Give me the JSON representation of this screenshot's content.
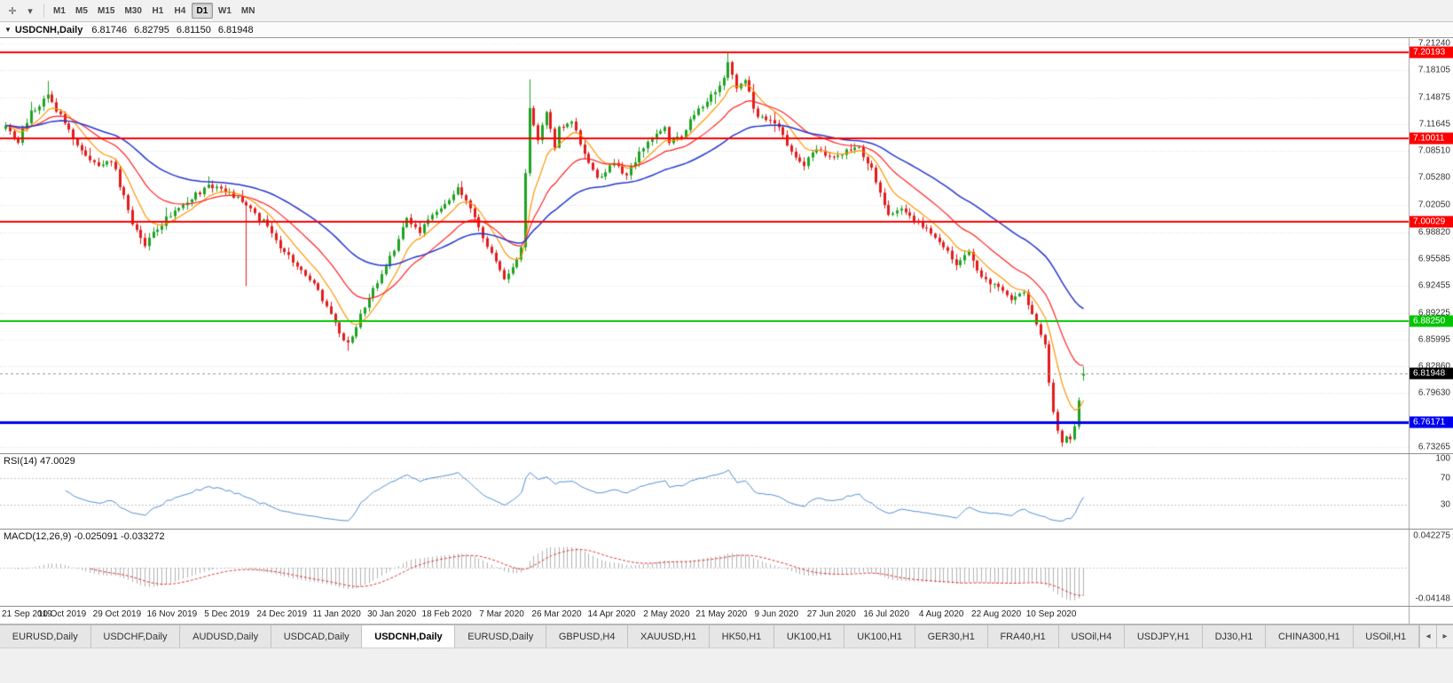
{
  "toolbar": {
    "icons": [
      {
        "name": "crosshair-icon",
        "glyph": "✛"
      },
      {
        "name": "caret-down-icon",
        "glyph": "▾"
      }
    ],
    "timeframes": [
      "M1",
      "M5",
      "M15",
      "M30",
      "H1",
      "H4",
      "D1",
      "W1",
      "MN"
    ],
    "selected": "D1"
  },
  "chart": {
    "header": {
      "collapse_glyph": "▼",
      "symbol": "USDCNH,Daily",
      "open": "6.81746",
      "high": "6.82795",
      "low": "6.81150",
      "close": "6.81948"
    },
    "price_axis": {
      "ticks": [
        "7.21240",
        "7.18105",
        "7.14875",
        "7.11645",
        "7.08510",
        "7.05280",
        "7.02050",
        "6.98820",
        "6.95585",
        "6.92455",
        "6.89225",
        "6.85995",
        "6.82860",
        "6.79630",
        "6.76400",
        "6.73265"
      ],
      "scale_max": 7.219,
      "scale_min": 6.725
    },
    "hlines": [
      {
        "price": 7.20193,
        "label": "7.20193",
        "color": "#fe0000",
        "width": 2
      },
      {
        "price": 7.10011,
        "label": "7.10011",
        "color": "#fe0000",
        "width": 2
      },
      {
        "price": 7.00029,
        "label": "7.00029",
        "color": "#fe0000",
        "width": 2
      },
      {
        "price": 6.8825,
        "label": "6.88250",
        "color": "#00c400",
        "width": 2
      },
      {
        "price": 6.76171,
        "label": "6.76171",
        "color": "#0000f0",
        "width": 3
      }
    ],
    "current_price": {
      "value": 6.81948,
      "label": "6.81948",
      "badge_bg": "#000000"
    }
  },
  "rsi": {
    "label": "RSI(14) 47.0029",
    "value": 47.0029,
    "levels": [
      70,
      30
    ],
    "axis_labels": [
      "100",
      "70",
      "30"
    ],
    "axis_values": [
      100,
      70,
      30
    ],
    "line_color": "#4f8fce"
  },
  "macd": {
    "label": "MACD(12,26,9) -0.025091 -0.033272",
    "macd_value": -0.025091,
    "signal_value": -0.033272,
    "axis_labels": [
      "0.042275",
      "-0.04148"
    ]
  },
  "date_axis": {
    "labels": [
      "21 Sep 2019",
      "10 Oct 2019",
      "29 Oct 2019",
      "16 Nov 2019",
      "5 Dec 2019",
      "24 Dec 2019",
      "11 Jan 2020",
      "30 Jan 2020",
      "18 Feb 2020",
      "7 Mar 2020",
      "26 Mar 2020",
      "14 Apr 2020",
      "2 May 2020",
      "21 May 2020",
      "9 Jun 2020",
      "27 Jun 2020",
      "16 Jul 2020",
      "4 Aug 2020",
      "22 Aug 2020",
      "10 Sep 2020"
    ]
  },
  "tabs": {
    "items": [
      "EURUSD,Daily",
      "USDCHF,Daily",
      "AUDUSD,Daily",
      "USDCAD,Daily",
      "USDCNH,Daily",
      "EURUSD,Daily",
      "GBPUSD,H4",
      "XAUUSD,H1",
      "HK50,H1",
      "UK100,H1",
      "UK100,H1",
      "GER30,H1",
      "FRA40,H1",
      "USOil,H4",
      "USDJPY,H1",
      "DJ30,H1",
      "CHINA300,H1",
      "USOil,H1"
    ],
    "active_index": 4,
    "scroll_left_glyph": "◂",
    "scroll_right_glyph": "▸"
  },
  "colors": {
    "background": "#ffffff",
    "grid": "#dcdcdc",
    "candle_up": "#1da322",
    "candle_down": "#e31b1b",
    "macd_hist": "#b0b0b0",
    "macd_signal": "#e03030",
    "axis_text": "#333333"
  },
  "chart_data": {
    "type": "candlestick",
    "symbol": "USDCNH",
    "timeframe": "Daily",
    "bars": 256,
    "last_bar_ohlc": [
      6.81746,
      6.82795,
      6.8115,
      6.81948
    ],
    "extremes": {
      "high": 7.2019,
      "low": 6.7327
    },
    "price_path_anchors": [
      [
        0,
        7.115
      ],
      [
        3,
        7.098
      ],
      [
        6,
        7.13
      ],
      [
        10,
        7.152
      ],
      [
        14,
        7.118
      ],
      [
        18,
        7.085
      ],
      [
        22,
        7.068
      ],
      [
        25,
        7.075
      ],
      [
        27,
        7.045
      ],
      [
        30,
        7.0
      ],
      [
        33,
        6.972
      ],
      [
        36,
        6.992
      ],
      [
        40,
        7.015
      ],
      [
        44,
        7.03
      ],
      [
        48,
        7.042
      ],
      [
        53,
        7.035
      ],
      [
        57,
        7.018
      ],
      [
        61,
        7.0
      ],
      [
        66,
        6.965
      ],
      [
        70,
        6.945
      ],
      [
        74,
        6.918
      ],
      [
        77,
        6.888
      ],
      [
        79,
        6.868
      ],
      [
        81,
        6.855
      ],
      [
        84,
        6.888
      ],
      [
        88,
        6.928
      ],
      [
        92,
        6.968
      ],
      [
        95,
        7.002
      ],
      [
        98,
        6.988
      ],
      [
        101,
        7.012
      ],
      [
        104,
        7.022
      ],
      [
        107,
        7.038
      ],
      [
        110,
        7.018
      ],
      [
        113,
        6.982
      ],
      [
        116,
        6.952
      ],
      [
        118,
        6.935
      ],
      [
        120,
        6.945
      ],
      [
        122,
        6.968
      ],
      [
        123,
        7.06
      ],
      [
        124,
        7.135
      ],
      [
        126,
        7.1
      ],
      [
        128,
        7.128
      ],
      [
        130,
        7.092
      ],
      [
        131,
        7.112
      ],
      [
        134,
        7.118
      ],
      [
        137,
        7.082
      ],
      [
        140,
        7.052
      ],
      [
        144,
        7.072
      ],
      [
        147,
        7.055
      ],
      [
        150,
        7.082
      ],
      [
        153,
        7.102
      ],
      [
        156,
        7.112
      ],
      [
        157,
        7.092
      ],
      [
        160,
        7.102
      ],
      [
        163,
        7.128
      ],
      [
        166,
        7.142
      ],
      [
        169,
        7.162
      ],
      [
        171,
        7.188
      ],
      [
        173,
        7.158
      ],
      [
        175,
        7.172
      ],
      [
        177,
        7.132
      ],
      [
        180,
        7.122
      ],
      [
        183,
        7.115
      ],
      [
        186,
        7.082
      ],
      [
        189,
        7.068
      ],
      [
        192,
        7.088
      ],
      [
        196,
        7.075
      ],
      [
        199,
        7.086
      ],
      [
        202,
        7.09
      ],
      [
        205,
        7.062
      ],
      [
        209,
        7.006
      ],
      [
        212,
        7.018
      ],
      [
        215,
        7.0
      ],
      [
        218,
        6.992
      ],
      [
        222,
        6.972
      ],
      [
        225,
        6.952
      ],
      [
        228,
        6.962
      ],
      [
        231,
        6.936
      ],
      [
        235,
        6.922
      ],
      [
        238,
        6.905
      ],
      [
        241,
        6.918
      ],
      [
        244,
        6.878
      ],
      [
        246,
        6.855
      ],
      [
        247,
        6.81
      ],
      [
        248,
        6.775
      ],
      [
        249,
        6.752
      ],
      [
        250,
        6.738
      ],
      [
        251,
        6.746
      ],
      [
        252,
        6.741
      ],
      [
        253,
        6.758
      ],
      [
        254,
        6.788
      ],
      [
        255,
        6.8195
      ]
    ],
    "overrides": [
      {
        "bar": 10,
        "high": 7.168
      },
      {
        "bar": 57,
        "low": 6.924
      },
      {
        "bar": 81,
        "low": 6.847
      },
      {
        "bar": 124,
        "high": 7.17
      },
      {
        "bar": 171,
        "high": 7.2019
      },
      {
        "bar": 250,
        "low": 6.7327
      }
    ],
    "moving_averages": [
      {
        "name": "fast-ma",
        "period": 8,
        "color": "#ff9500",
        "width": 1.2
      },
      {
        "name": "medium-ma",
        "period": 20,
        "color": "#ff2020",
        "width": 1.2
      },
      {
        "name": "slow-ma",
        "period": 45,
        "color": "#2336cf",
        "width": 1.5
      }
    ],
    "indicators": {
      "rsi": {
        "period": 14,
        "current": 47.0029
      },
      "macd": {
        "fast": 12,
        "slow": 26,
        "signal": 9,
        "macd": -0.025091,
        "signal_value": -0.033272
      }
    }
  }
}
